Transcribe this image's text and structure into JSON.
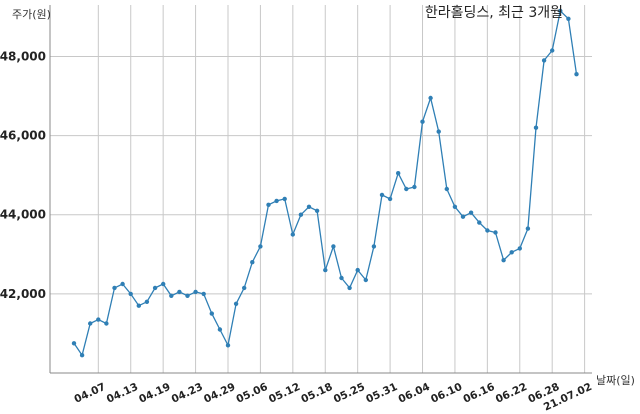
{
  "chart_data": {
    "type": "line",
    "title": "한라홀딩스, 최근 3개월",
    "xlabel": "날짜(일)",
    "ylabel": "주가(원)",
    "ylim": [
      40000,
      49300
    ],
    "yticks": [
      42000,
      44000,
      46000,
      48000
    ],
    "ytick_labels": [
      "42,000",
      "44,000",
      "46,000",
      "48,000"
    ],
    "xtick_labels": [
      "04.07",
      "04.13",
      "04.19",
      "04.23",
      "04.29",
      "05.06",
      "05.12",
      "05.18",
      "05.25",
      "05.31",
      "06.04",
      "06.10",
      "06.16",
      "06.22",
      "06.28",
      "21.07.02"
    ],
    "xtick_positions": [
      3,
      7,
      11,
      15,
      19,
      23,
      27,
      31,
      35,
      39,
      43,
      47,
      51,
      55,
      59,
      63
    ],
    "grid": true,
    "color": "#2f7fb5",
    "series": [
      {
        "values": [
          40750,
          40450,
          41250,
          41350,
          41250,
          42150,
          42250,
          42000,
          41700,
          41800,
          42150,
          42250,
          41950,
          42050,
          41950,
          42050,
          42000,
          41500,
          41100,
          40700,
          41750,
          42150,
          42800,
          43200,
          44250,
          44350,
          44400,
          43500,
          44000,
          44200,
          44100,
          42600,
          43200,
          42400,
          42150,
          42600,
          42350,
          43200,
          44500,
          44400,
          45050,
          44650,
          44700,
          46350,
          46950,
          46100,
          44650,
          44200,
          43950,
          44050,
          43800,
          43600,
          43550,
          42850,
          43050,
          43150,
          43650,
          46200,
          47900,
          48150,
          49150,
          48950,
          47550
        ]
      }
    ]
  }
}
